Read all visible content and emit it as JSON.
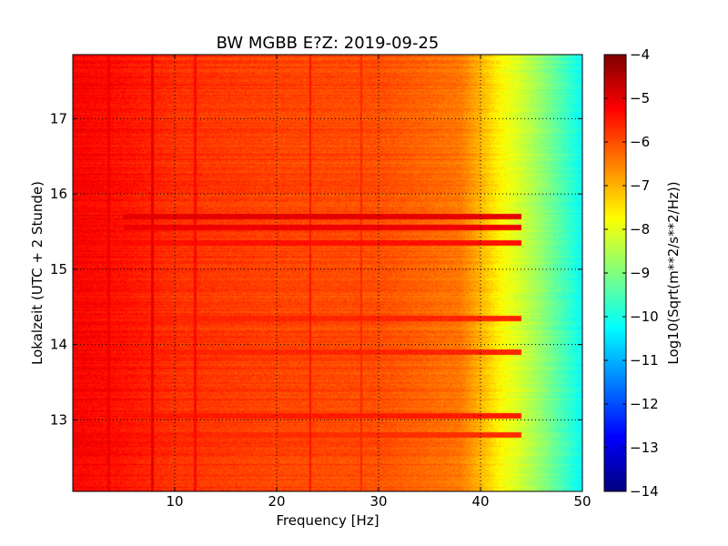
{
  "chart_data": {
    "type": "heatmap",
    "title": "BW MGBB E?Z: 2019-09-25",
    "xlabel": "Frequency [Hz]",
    "ylabel": "Lokalzeit (UTC + 2 Stunde)",
    "colorbar_label": "Log10(Sqrt(m**2/s**2/Hz))",
    "colormap": "jet",
    "xlim": [
      0,
      50
    ],
    "ylim": [
      17.85,
      12.05
    ],
    "y_inverted": true,
    "x_ticks": [
      10,
      20,
      30,
      40,
      50
    ],
    "x_tick_labels": [
      "10",
      "20",
      "30",
      "40",
      "50"
    ],
    "y_ticks": [
      13,
      14,
      15,
      16,
      17
    ],
    "y_tick_labels": [
      "13",
      "14",
      "15",
      "16",
      "17"
    ],
    "clim": [
      -14,
      -4
    ],
    "colorbar_ticks": [
      -4,
      -5,
      -6,
      -7,
      -8,
      -9,
      -10,
      -11,
      -12,
      -13,
      -14
    ],
    "colorbar_tick_labels": [
      "−4",
      "−5",
      "−6",
      "−7",
      "−8",
      "−9",
      "−10",
      "−11",
      "−12",
      "−13",
      "−14"
    ],
    "grid": true,
    "spectral_profile": {
      "frequency_hz": [
        0,
        5,
        10,
        20,
        30,
        38,
        40,
        42,
        44,
        46,
        48,
        50
      ],
      "log10_amplitude": [
        -5.2,
        -5.4,
        -5.7,
        -5.9,
        -6.0,
        -6.4,
        -7.0,
        -7.7,
        -8.2,
        -8.8,
        -9.5,
        -10.2
      ]
    },
    "stripes": [
      {
        "frequency_hz": 7.8,
        "log10_amplitude": -5.0
      },
      {
        "frequency_hz": 3.5,
        "log10_amplitude": -5.1
      },
      {
        "frequency_hz": 12.0,
        "log10_amplitude": -5.3
      },
      {
        "frequency_hz": 23.3,
        "log10_amplitude": -5.4
      },
      {
        "frequency_hz": 28.3,
        "log10_amplitude": -5.6
      }
    ],
    "bands": [
      {
        "time": 15.55,
        "log10_amplitude": -5.1
      },
      {
        "time": 15.7,
        "log10_amplitude": -5.0
      },
      {
        "time": 15.35,
        "log10_amplitude": -5.4
      },
      {
        "time": 13.05,
        "log10_amplitude": -5.5
      },
      {
        "time": 13.9,
        "log10_amplitude": -5.6
      },
      {
        "time": 14.35,
        "log10_amplitude": -5.6
      },
      {
        "time": 12.8,
        "log10_amplitude": -5.7
      }
    ]
  }
}
